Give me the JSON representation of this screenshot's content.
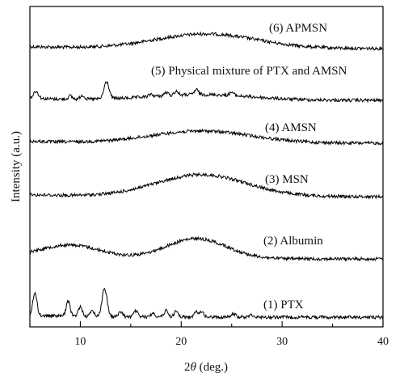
{
  "chart_data": {
    "type": "line",
    "xlabel_prefix": "2",
    "xlabel_symbol": "θ",
    "xlabel_suffix": " (deg.)",
    "ylabel": "Intensity (a.u.)",
    "xlim": [
      5,
      40
    ],
    "xticks": [
      10,
      20,
      30,
      40
    ],
    "grid": false,
    "series": [
      {
        "name": "(6) APMSN",
        "peaks": [
          [
            22.5,
            0.9,
            5.0
          ]
        ]
      },
      {
        "name": "(5) Physical mixture of PTX and AMSN",
        "peaks": [
          [
            22.0,
            0.35,
            5.0
          ],
          [
            5.6,
            0.45,
            0.25
          ],
          [
            12.6,
            1.05,
            0.25
          ],
          [
            9.0,
            0.2,
            0.2
          ],
          [
            10.2,
            0.25,
            0.2
          ],
          [
            17.0,
            0.15,
            0.2
          ],
          [
            18.5,
            0.2,
            0.2
          ],
          [
            19.5,
            0.25,
            0.2
          ],
          [
            21.5,
            0.3,
            0.2
          ],
          [
            25.0,
            0.2,
            0.2
          ]
        ]
      },
      {
        "name": "(4) AMSN",
        "peaks": [
          [
            22.0,
            0.75,
            5.0
          ]
        ]
      },
      {
        "name": "(3) MSN",
        "peaks": [
          [
            22.0,
            1.35,
            4.5
          ]
        ]
      },
      {
        "name": "(2) Albumin",
        "peaks": [
          [
            9.0,
            0.8,
            3.0
          ],
          [
            21.5,
            1.25,
            3.0
          ]
        ]
      },
      {
        "name": "(1) PTX",
        "peaks": [
          [
            5.5,
            1.4,
            0.2
          ],
          [
            8.8,
            0.9,
            0.2
          ],
          [
            10.0,
            0.6,
            0.2
          ],
          [
            11.2,
            0.35,
            0.2
          ],
          [
            12.4,
            1.75,
            0.25
          ],
          [
            14.0,
            0.3,
            0.2
          ],
          [
            15.5,
            0.35,
            0.2
          ],
          [
            17.2,
            0.25,
            0.2
          ],
          [
            18.5,
            0.4,
            0.2
          ],
          [
            19.5,
            0.35,
            0.2
          ],
          [
            21.5,
            0.3,
            0.2
          ],
          [
            22.0,
            0.35,
            0.2
          ],
          [
            25.2,
            0.2,
            0.2
          ],
          [
            27.0,
            0.15,
            0.2
          ]
        ]
      }
    ]
  }
}
